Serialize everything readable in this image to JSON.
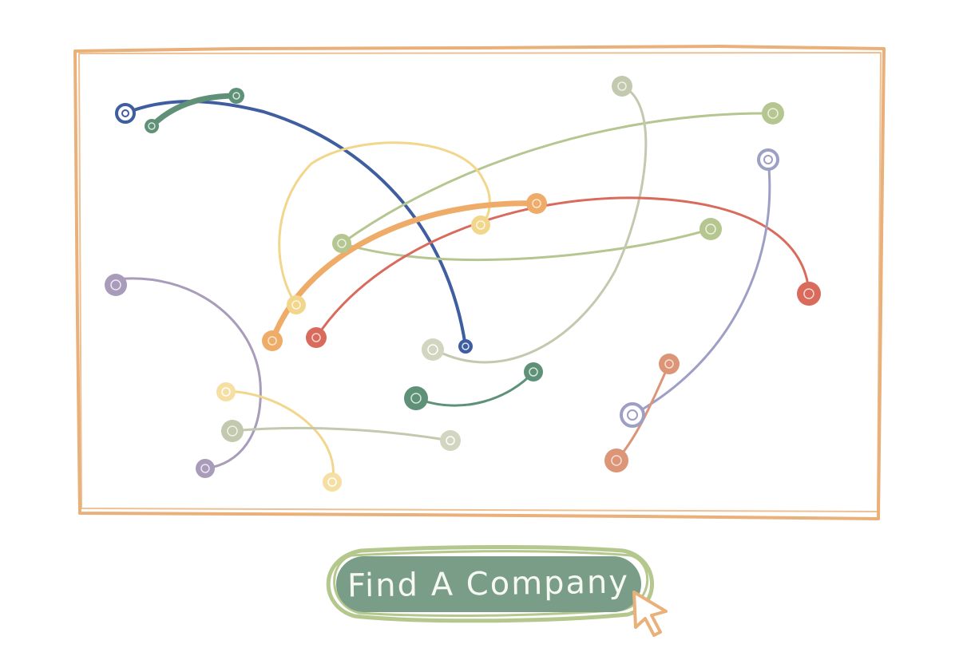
{
  "button": {
    "label": "Find A Company"
  },
  "colors": {
    "frame": "#eab07a",
    "navy": "#3f5ea0",
    "dark_green": "#5f9078",
    "sage": "#b5c690",
    "sage_gray": "#c3c9ae",
    "yellow": "#f2d68c",
    "orange": "#eeac68",
    "red": "#d96b5c",
    "purple": "#a99cbb",
    "lavender": "#9d9fc4",
    "terracotta": "#dc9577",
    "button_fill": "#7a9d88",
    "button_outline": "#b4c78d",
    "button_text": "#f6f8f2",
    "cursor": "#eab07a"
  },
  "connection_colors": [
    "navy",
    "dark_green",
    "sage",
    "sage",
    "sage_gray",
    "yellow",
    "orange",
    "red",
    "lavender",
    "terracotta",
    "dark_green",
    "purple",
    "yellow",
    "sage_gray"
  ],
  "icons": {
    "cursor": "arrow-cursor-icon"
  }
}
